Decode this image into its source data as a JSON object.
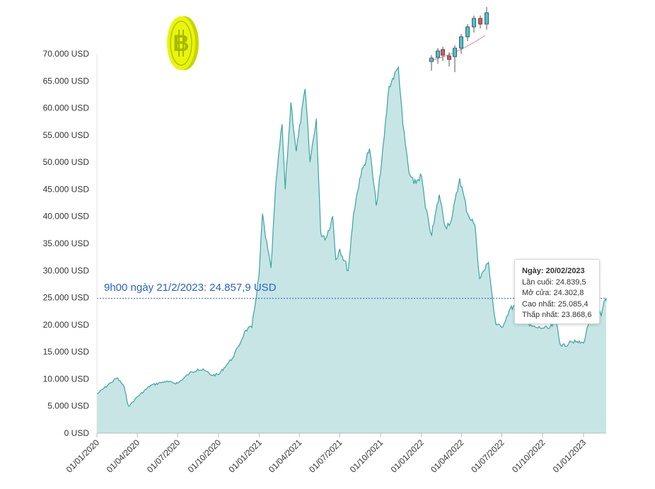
{
  "chart_data": {
    "type": "area",
    "title": "",
    "xlabel": "",
    "ylabel": "",
    "ylim": [
      0,
      70000
    ],
    "y_ticks": [
      "0 USD",
      "5.000 USD",
      "10.000 USD",
      "15.000 USD",
      "20.000 USD",
      "25.000 USD",
      "30.000 USD",
      "35.000 USD",
      "40.000 USD",
      "45.000 USD",
      "50.000 USD",
      "55.000 USD",
      "60.000 USD",
      "65.000 USD",
      "70.000 USD"
    ],
    "x_ticks": [
      "01/01/2020",
      "01/04/2020",
      "01/07/2020",
      "01/10/2020",
      "01/01/2021",
      "01/04/2021",
      "01/07/2021",
      "01/10/2021",
      "01/01/2022",
      "01/04/2022",
      "01/07/2022",
      "01/10/2022",
      "01/01/2023"
    ],
    "grid": false,
    "colors": {
      "line": "#3aa3a3",
      "fill": "#c7e5e5",
      "reference_line": "#2a62c9"
    },
    "series": [
      {
        "x": [
          "2020-01-01",
          "2020-02-01",
          "2020-02-15",
          "2020-03-01",
          "2020-03-12",
          "2020-03-16",
          "2020-04-01",
          "2020-05-01",
          "2020-06-01",
          "2020-07-01",
          "2020-07-27",
          "2020-08-15",
          "2020-09-01",
          "2020-09-15",
          "2020-10-01",
          "2020-10-21",
          "2020-11-01",
          "2020-11-15",
          "2020-12-01",
          "2020-12-15",
          "2020-12-31",
          "2021-01-08",
          "2021-01-15",
          "2021-01-27",
          "2021-02-08",
          "2021-02-21",
          "2021-02-28",
          "2021-03-13",
          "2021-03-25",
          "2021-04-14",
          "2021-04-25",
          "2021-05-09",
          "2021-05-19",
          "2021-05-31",
          "2021-06-15",
          "2021-06-22",
          "2021-07-01",
          "2021-07-20",
          "2021-08-01",
          "2021-08-15",
          "2021-09-06",
          "2021-09-21",
          "2021-10-01",
          "2021-10-20",
          "2021-11-10",
          "2021-11-20",
          "2021-12-04",
          "2021-12-15",
          "2022-01-01",
          "2022-01-10",
          "2022-01-24",
          "2022-02-10",
          "2022-02-24",
          "2022-03-10",
          "2022-03-28",
          "2022-04-15",
          "2022-05-01",
          "2022-05-12",
          "2022-06-01",
          "2022-06-13",
          "2022-06-18",
          "2022-07-01",
          "2022-07-20",
          "2022-08-01",
          "2022-08-14",
          "2022-09-01",
          "2022-09-15",
          "2022-10-01",
          "2022-10-15",
          "2022-11-01",
          "2022-11-09",
          "2022-11-21",
          "2022-12-01",
          "2022-12-15",
          "2023-01-01",
          "2023-01-14",
          "2023-01-21",
          "2023-02-01",
          "2023-02-10",
          "2023-02-16",
          "2023-02-20",
          "2023-02-21"
        ],
        "values": [
          7200,
          9300,
          10200,
          8800,
          5000,
          5200,
          6700,
          8800,
          9500,
          9200,
          11000,
          11800,
          11500,
          10700,
          10800,
          12800,
          13800,
          16000,
          19000,
          19500,
          29000,
          40500,
          36000,
          30500,
          47000,
          57000,
          45000,
          61000,
          52000,
          63500,
          50000,
          58000,
          37000,
          36000,
          40000,
          32000,
          34000,
          30000,
          40500,
          47000,
          52500,
          42000,
          48000,
          64000,
          67500,
          57000,
          48000,
          46000,
          47500,
          41500,
          36500,
          44000,
          38000,
          39500,
          47000,
          40500,
          38500,
          28500,
          31500,
          22500,
          20000,
          19500,
          23000,
          23500,
          24500,
          19800,
          19500,
          19400,
          19300,
          20500,
          16500,
          16000,
          17000,
          16800,
          16600,
          20900,
          22800,
          23500,
          21700,
          24300,
          24800,
          24858
        ]
      }
    ],
    "reference_line": {
      "value": 24857.9,
      "label": "9h00 ngày 21/2/2023: 24.857,9 USD"
    },
    "tooltip": {
      "title": "Ngày: 20/02/2023",
      "last": "Lần cuối: 24.839,5",
      "open": "Mở cửa: 24.302,8",
      "high": "Cao nhất: 25.085,4",
      "low": "Thấp nhất: 23.868,6"
    }
  }
}
